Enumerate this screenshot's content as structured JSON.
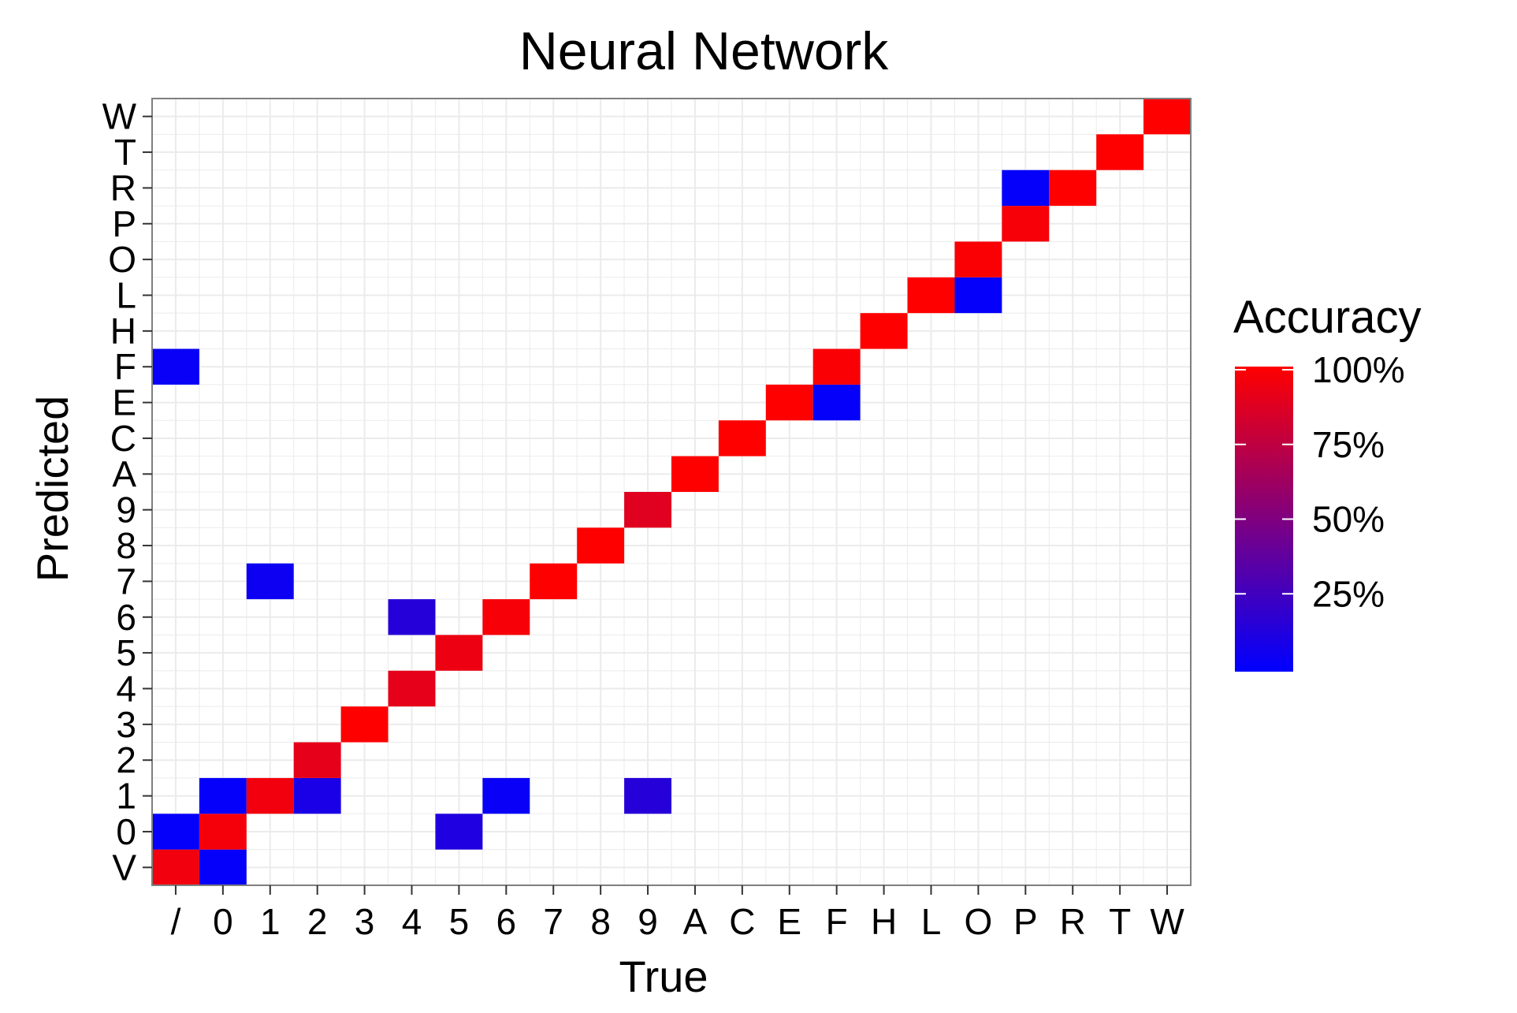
{
  "chart_data": {
    "type": "heatmap",
    "title": "Neural Network",
    "xlabel": "True",
    "ylabel": "Predicted",
    "x_categories": [
      "/",
      "0",
      "1",
      "2",
      "3",
      "4",
      "5",
      "6",
      "7",
      "8",
      "9",
      "A",
      "C",
      "E",
      "F",
      "H",
      "L",
      "O",
      "P",
      "R",
      "T",
      "W"
    ],
    "y_categories": [
      "V",
      "0",
      "1",
      "2",
      "3",
      "4",
      "5",
      "6",
      "7",
      "8",
      "9",
      "A",
      "C",
      "E",
      "F",
      "H",
      "L",
      "O",
      "P",
      "R",
      "T",
      "W"
    ],
    "cells": [
      {
        "x": "/",
        "y": "V",
        "value": 0.95
      },
      {
        "x": "/",
        "y": "0",
        "value": 0.02
      },
      {
        "x": "/",
        "y": "F",
        "value": 0.03
      },
      {
        "x": "0",
        "y": "V",
        "value": 0.02
      },
      {
        "x": "0",
        "y": "0",
        "value": 0.96
      },
      {
        "x": "0",
        "y": "1",
        "value": 0.02
      },
      {
        "x": "1",
        "y": "1",
        "value": 0.95
      },
      {
        "x": "1",
        "y": "7",
        "value": 0.05
      },
      {
        "x": "2",
        "y": "1",
        "value": 0.1
      },
      {
        "x": "2",
        "y": "2",
        "value": 0.9
      },
      {
        "x": "3",
        "y": "3",
        "value": 1.0
      },
      {
        "x": "4",
        "y": "4",
        "value": 0.9
      },
      {
        "x": "4",
        "y": "6",
        "value": 0.15
      },
      {
        "x": "5",
        "y": "0",
        "value": 0.12
      },
      {
        "x": "5",
        "y": "5",
        "value": 0.93
      },
      {
        "x": "6",
        "y": "1",
        "value": 0.03
      },
      {
        "x": "6",
        "y": "6",
        "value": 0.97
      },
      {
        "x": "7",
        "y": "7",
        "value": 1.0
      },
      {
        "x": "8",
        "y": "8",
        "value": 1.0
      },
      {
        "x": "9",
        "y": "1",
        "value": 0.15
      },
      {
        "x": "9",
        "y": "9",
        "value": 0.88
      },
      {
        "x": "A",
        "y": "A",
        "value": 1.0
      },
      {
        "x": "C",
        "y": "C",
        "value": 1.0
      },
      {
        "x": "E",
        "y": "E",
        "value": 1.0
      },
      {
        "x": "F",
        "y": "E",
        "value": 0.02
      },
      {
        "x": "F",
        "y": "F",
        "value": 0.98
      },
      {
        "x": "H",
        "y": "H",
        "value": 1.0
      },
      {
        "x": "L",
        "y": "L",
        "value": 1.0
      },
      {
        "x": "O",
        "y": "L",
        "value": 0.02
      },
      {
        "x": "O",
        "y": "O",
        "value": 0.98
      },
      {
        "x": "P",
        "y": "P",
        "value": 0.97
      },
      {
        "x": "P",
        "y": "R",
        "value": 0.02
      },
      {
        "x": "R",
        "y": "R",
        "value": 1.0
      },
      {
        "x": "T",
        "y": "T",
        "value": 1.0
      },
      {
        "x": "W",
        "y": "W",
        "value": 1.0
      }
    ],
    "legend": {
      "title": "Accuracy",
      "ticks": [
        {
          "value": 1.0,
          "label": "100%"
        },
        {
          "value": 0.75,
          "label": "75%"
        },
        {
          "value": 0.5,
          "label": "50%"
        },
        {
          "value": 0.25,
          "label": "25%"
        }
      ],
      "range": [
        0,
        1
      ],
      "low_color": "#0000ff",
      "high_color": "#ff0000",
      "placement": "right"
    },
    "grid": true,
    "grid_color": "#ebebeb",
    "panel_border_color": "#7f7f7f"
  }
}
